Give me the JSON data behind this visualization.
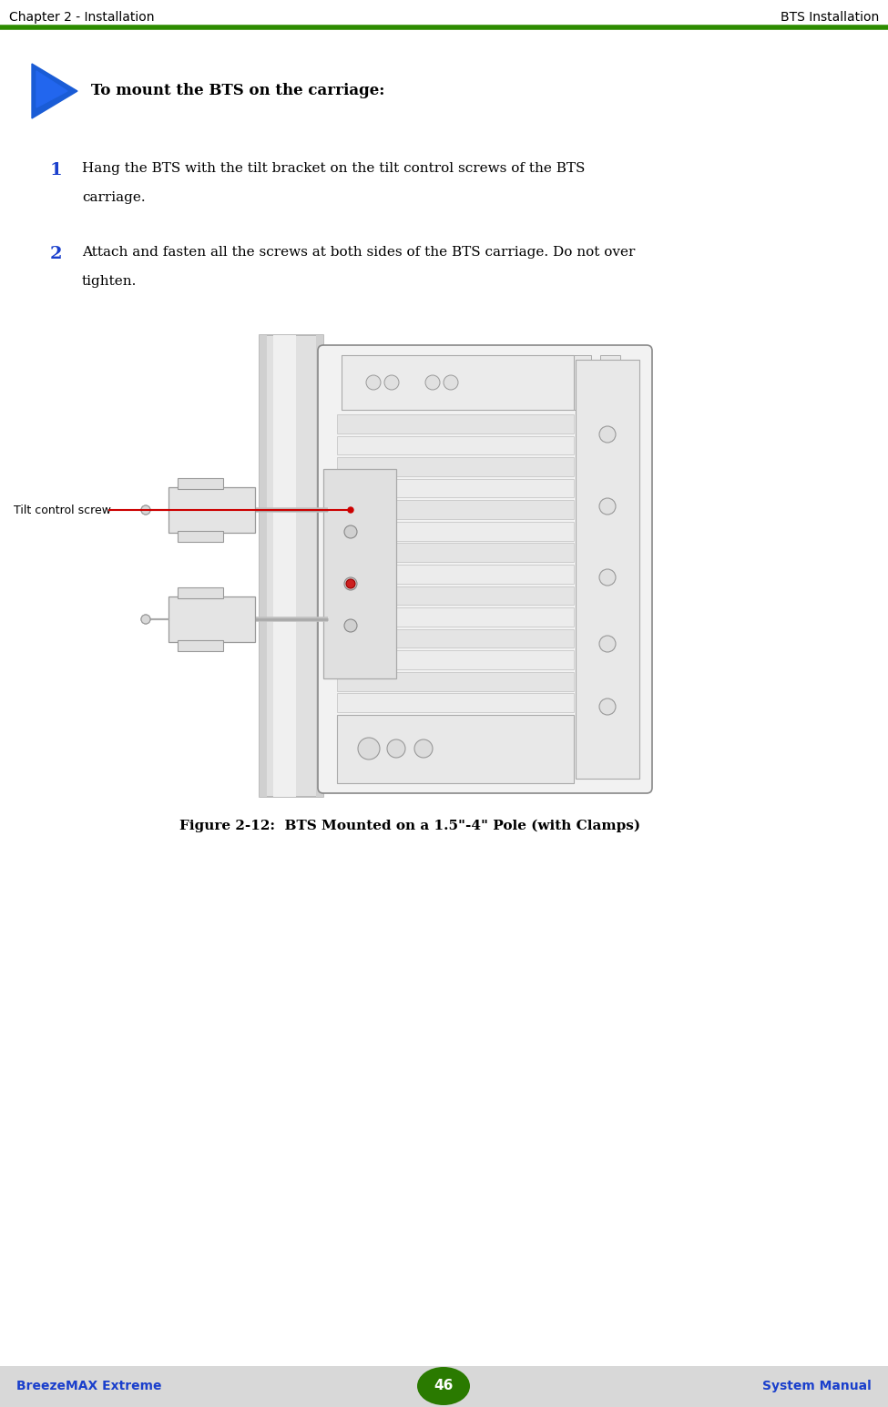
{
  "bg_color": "#ffffff",
  "header_text_left": "Chapter 2 - Installation",
  "header_text_right": "BTS Installation",
  "header_line_color": "#2d8c00",
  "header_text_color": "#000000",
  "header_fontsize": 10,
  "arrow_color_top": "#1a5cd6",
  "arrow_color_bottom": "#2244aa",
  "procedure_title": "To mount the BTS on the carriage:",
  "procedure_title_fontsize": 12,
  "step_number_color": "#1a3fcc",
  "step_fontsize": 11,
  "step1_number": "1",
  "step1_line1": "Hang the BTS with the tilt bracket on the tilt control screws of the BTS",
  "step1_line2": "carriage.",
  "step2_number": "2",
  "step2_line1": "Attach and fasten all the screws at both sides of the BTS carriage. Do not over",
  "step2_line2": "tighten.",
  "figure_caption": "Figure 2-12:  BTS Mounted on a 1.5\"-4\" Pole (with Clamps)",
  "figure_caption_fontsize": 11,
  "label_text": "Tilt control screw",
  "label_fontsize": 9,
  "footer_left": "BreezeMAX Extreme",
  "footer_right": "System Manual",
  "footer_color": "#1a3fcc",
  "footer_fontsize": 10,
  "page_number": "46",
  "page_num_bg": "#2a7a00",
  "page_num_color": "#ffffff",
  "page_num_fontsize": 11,
  "line_color": "#aaaaaa",
  "drawing_edge_color": "#888888",
  "pole_fill": "#e8e8e8",
  "bts_fill": "#f0f0f0",
  "bracket_fill": "#e0e0e0",
  "red_line_color": "#cc0000"
}
